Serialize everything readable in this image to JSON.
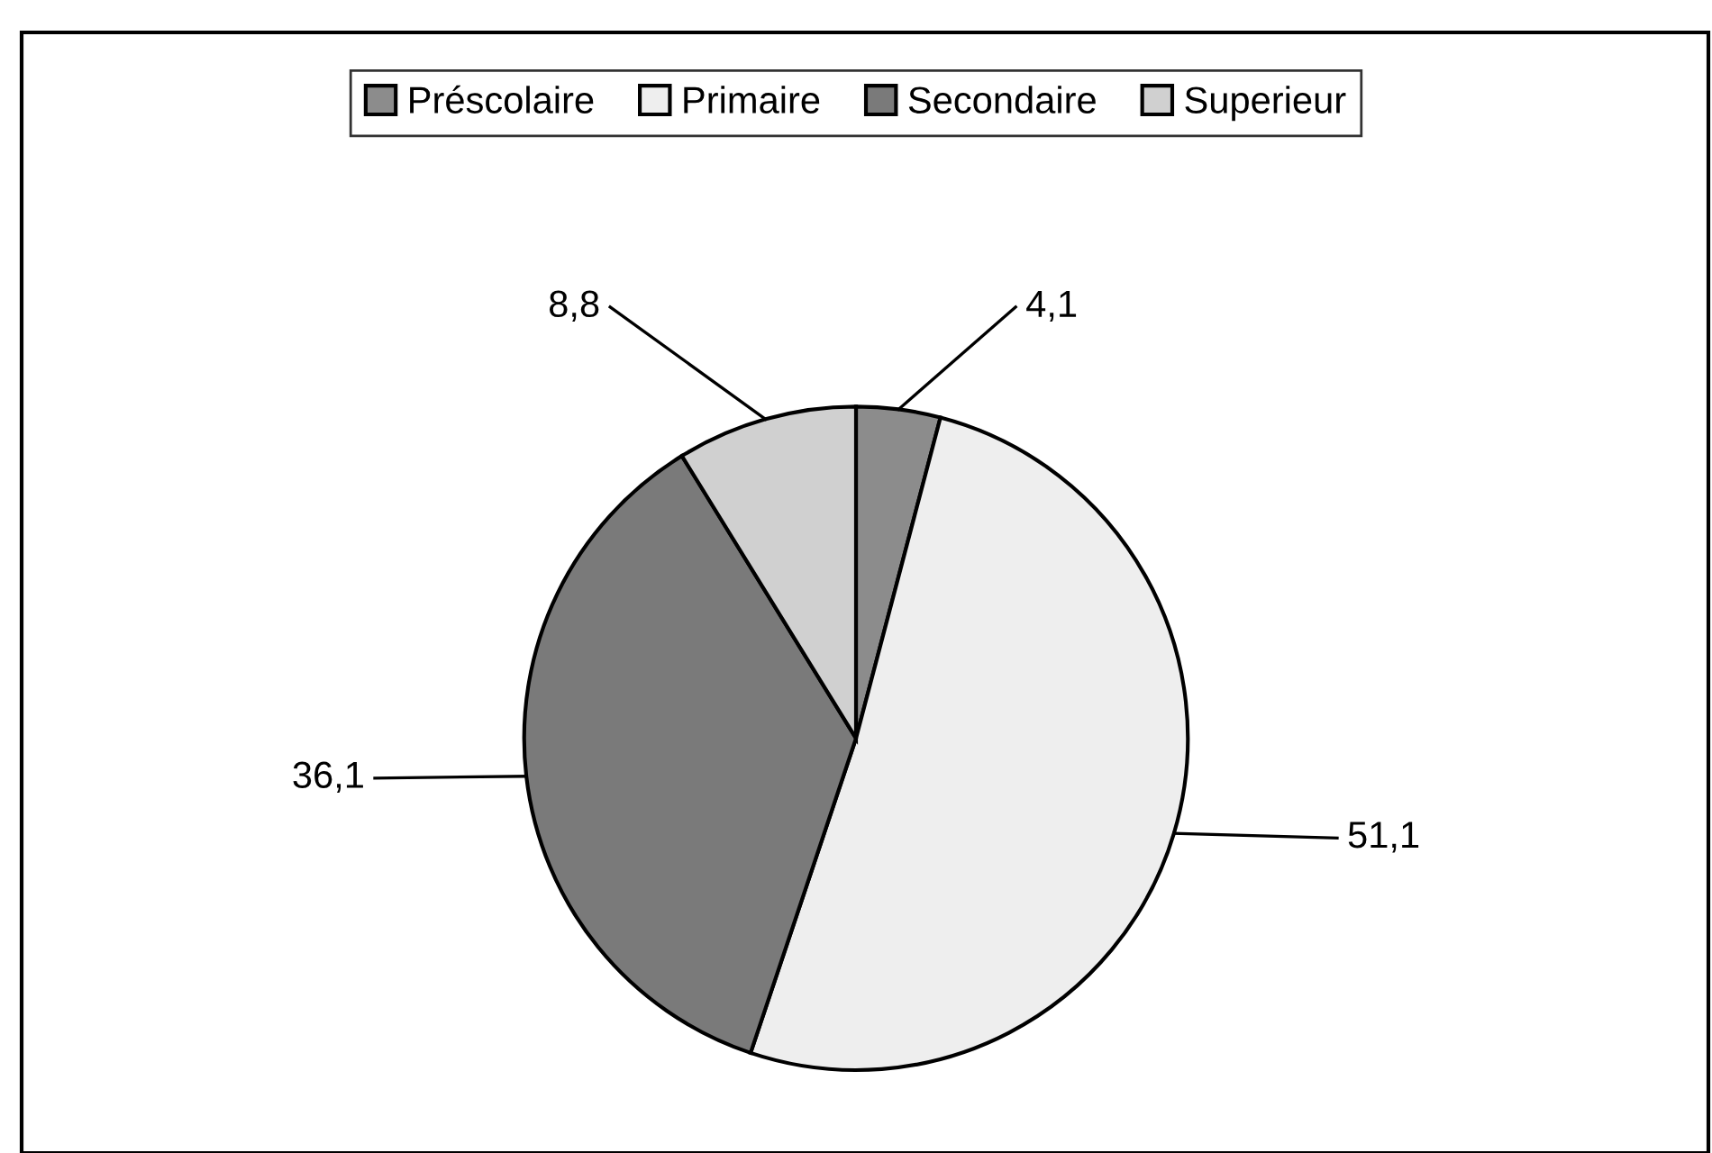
{
  "chart_data": {
    "type": "pie",
    "categories": [
      "Préscolaire",
      "Primaire",
      "Secondaire",
      "Superieur"
    ],
    "values": [
      4.1,
      51.1,
      36.1,
      8.8
    ],
    "value_labels": [
      "4,1",
      "51,1",
      "36,1",
      "8,8"
    ],
    "colors": [
      "#8c8c8c",
      "#eeeeee",
      "#7a7a7a",
      "#d0d0d0"
    ],
    "legend": "top"
  }
}
